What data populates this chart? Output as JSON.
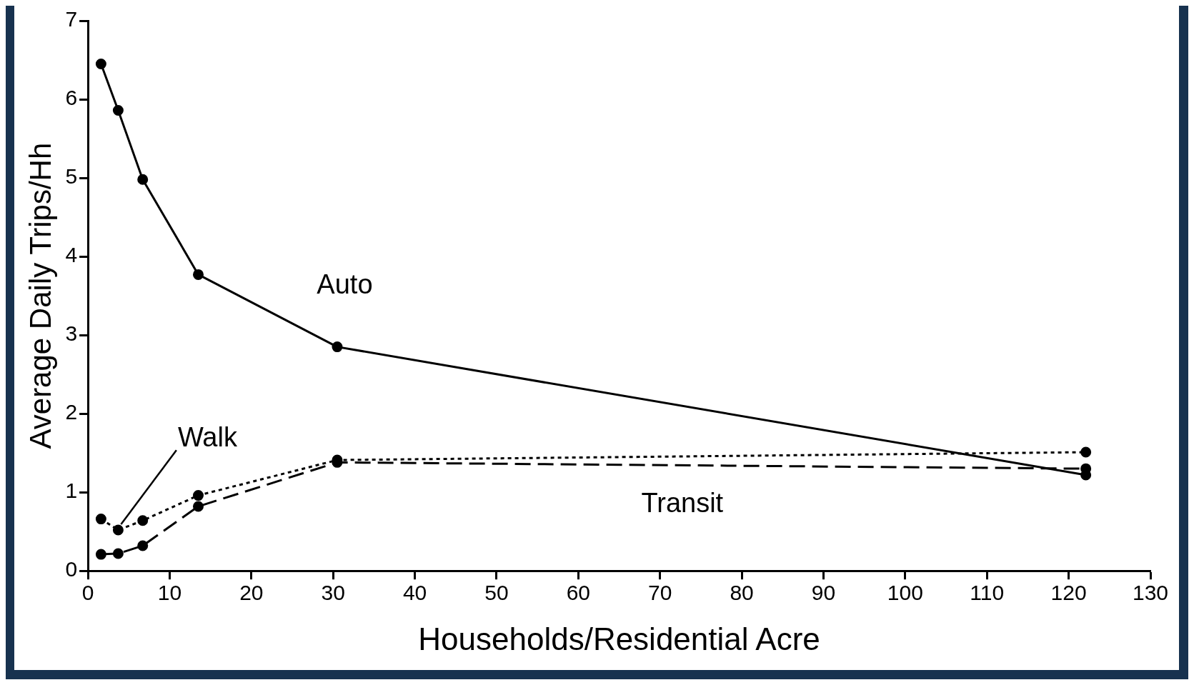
{
  "chart_data": {
    "type": "line",
    "xlabel": "Households/Residential Acre",
    "ylabel": "Average Daily Trips/Hh",
    "x": [
      1.6,
      3.7,
      6.7,
      13.5,
      30.5,
      122.1
    ],
    "series": [
      {
        "name": "Auto",
        "color": "#000000",
        "line_style": "solid",
        "values": [
          6.45,
          5.86,
          4.98,
          3.77,
          2.85,
          1.22
        ]
      },
      {
        "name": "Walk",
        "color": "#000000",
        "line_style": "dotted",
        "values": [
          0.66,
          0.52,
          0.64,
          0.96,
          1.41,
          1.51
        ]
      },
      {
        "name": "Transit",
        "color": "#000000",
        "line_style": "dashed",
        "values": [
          0.21,
          0.22,
          0.32,
          0.82,
          1.38,
          1.3
        ]
      }
    ],
    "marker": "circle",
    "xlim": [
      0,
      130
    ],
    "xticks": [
      0,
      10,
      20,
      30,
      40,
      50,
      60,
      70,
      80,
      90,
      100,
      110,
      120,
      130
    ],
    "ylim": [
      0,
      7
    ],
    "yticks": [
      0,
      1,
      2,
      3,
      4,
      5,
      6,
      7
    ],
    "grid": false,
    "legend": false
  }
}
